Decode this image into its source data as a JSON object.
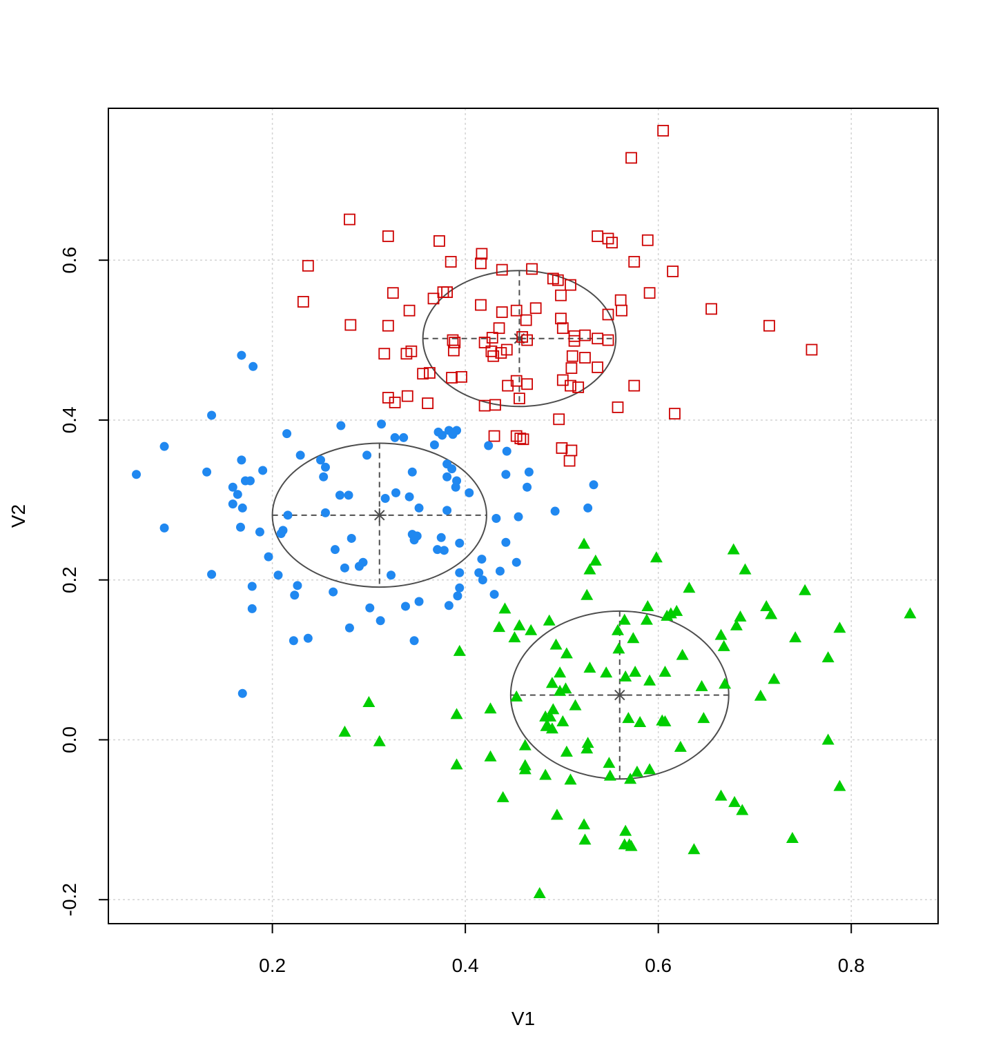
{
  "chart_data": {
    "type": "scatter",
    "title": "",
    "xlabel": "V1",
    "ylabel": "V2",
    "xlim": [
      0.03,
      0.89
    ],
    "ylim": [
      -0.23,
      0.79
    ],
    "xticks": [
      0.2,
      0.4,
      0.6,
      0.8
    ],
    "yticks": [
      -0.2,
      0.0,
      0.2,
      0.4,
      0.6
    ],
    "xtick_labels": [
      "0.2",
      "0.4",
      "0.6",
      "0.8"
    ],
    "ytick_labels": [
      "-0.2",
      "0.0",
      "0.2",
      "0.4",
      "0.6"
    ],
    "grid": true,
    "legend": "none",
    "series": [
      {
        "marker": "open-square",
        "color": "#cd0000",
        "points": [
          [
            0.605,
            0.762
          ],
          [
            0.572,
            0.728
          ],
          [
            0.28,
            0.651
          ],
          [
            0.32,
            0.63
          ],
          [
            0.373,
            0.624
          ],
          [
            0.537,
            0.63
          ],
          [
            0.548,
            0.627
          ],
          [
            0.552,
            0.622
          ],
          [
            0.589,
            0.625
          ],
          [
            0.237,
            0.593
          ],
          [
            0.385,
            0.598
          ],
          [
            0.417,
            0.608
          ],
          [
            0.416,
            0.596
          ],
          [
            0.438,
            0.588
          ],
          [
            0.469,
            0.589
          ],
          [
            0.575,
            0.598
          ],
          [
            0.615,
            0.586
          ],
          [
            0.491,
            0.577
          ],
          [
            0.496,
            0.575
          ],
          [
            0.509,
            0.569
          ],
          [
            0.325,
            0.559
          ],
          [
            0.381,
            0.56
          ],
          [
            0.377,
            0.56
          ],
          [
            0.591,
            0.559
          ],
          [
            0.232,
            0.548
          ],
          [
            0.367,
            0.552
          ],
          [
            0.499,
            0.556
          ],
          [
            0.561,
            0.55
          ],
          [
            0.416,
            0.544
          ],
          [
            0.342,
            0.537
          ],
          [
            0.438,
            0.535
          ],
          [
            0.453,
            0.537
          ],
          [
            0.473,
            0.54
          ],
          [
            0.562,
            0.537
          ],
          [
            0.655,
            0.539
          ],
          [
            0.499,
            0.527
          ],
          [
            0.548,
            0.532
          ],
          [
            0.463,
            0.525
          ],
          [
            0.281,
            0.519
          ],
          [
            0.32,
            0.518
          ],
          [
            0.435,
            0.515
          ],
          [
            0.501,
            0.515
          ],
          [
            0.715,
            0.518
          ],
          [
            0.387,
            0.5
          ],
          [
            0.389,
            0.497
          ],
          [
            0.428,
            0.503
          ],
          [
            0.459,
            0.504
          ],
          [
            0.464,
            0.5
          ],
          [
            0.513,
            0.505
          ],
          [
            0.524,
            0.506
          ],
          [
            0.537,
            0.502
          ],
          [
            0.548,
            0.5
          ],
          [
            0.42,
            0.497
          ],
          [
            0.427,
            0.486
          ],
          [
            0.513,
            0.499
          ],
          [
            0.344,
            0.486
          ],
          [
            0.339,
            0.483
          ],
          [
            0.316,
            0.483
          ],
          [
            0.388,
            0.487
          ],
          [
            0.437,
            0.484
          ],
          [
            0.429,
            0.48
          ],
          [
            0.443,
            0.488
          ],
          [
            0.511,
            0.48
          ],
          [
            0.524,
            0.478
          ],
          [
            0.759,
            0.488
          ],
          [
            0.51,
            0.465
          ],
          [
            0.537,
            0.466
          ],
          [
            0.356,
            0.458
          ],
          [
            0.363,
            0.459
          ],
          [
            0.386,
            0.453
          ],
          [
            0.396,
            0.454
          ],
          [
            0.453,
            0.449
          ],
          [
            0.501,
            0.45
          ],
          [
            0.509,
            0.443
          ],
          [
            0.517,
            0.441
          ],
          [
            0.464,
            0.445
          ],
          [
            0.444,
            0.443
          ],
          [
            0.575,
            0.443
          ],
          [
            0.32,
            0.428
          ],
          [
            0.34,
            0.43
          ],
          [
            0.327,
            0.422
          ],
          [
            0.456,
            0.427
          ],
          [
            0.361,
            0.421
          ],
          [
            0.42,
            0.418
          ],
          [
            0.431,
            0.419
          ],
          [
            0.558,
            0.416
          ],
          [
            0.617,
            0.408
          ],
          [
            0.497,
            0.401
          ],
          [
            0.43,
            0.38
          ],
          [
            0.453,
            0.38
          ],
          [
            0.457,
            0.377
          ],
          [
            0.46,
            0.376
          ],
          [
            0.5,
            0.365
          ],
          [
            0.51,
            0.362
          ],
          [
            0.508,
            0.349
          ]
        ]
      },
      {
        "marker": "filled-circle",
        "color": "#2088f0",
        "points": [
          [
            0.168,
            0.481
          ],
          [
            0.18,
            0.467
          ],
          [
            0.137,
            0.406
          ],
          [
            0.215,
            0.383
          ],
          [
            0.088,
            0.367
          ],
          [
            0.168,
            0.35
          ],
          [
            0.229,
            0.356
          ],
          [
            0.25,
            0.35
          ],
          [
            0.255,
            0.341
          ],
          [
            0.253,
            0.329
          ],
          [
            0.19,
            0.337
          ],
          [
            0.132,
            0.335
          ],
          [
            0.059,
            0.332
          ],
          [
            0.172,
            0.324
          ],
          [
            0.177,
            0.324
          ],
          [
            0.159,
            0.316
          ],
          [
            0.164,
            0.307
          ],
          [
            0.159,
            0.295
          ],
          [
            0.169,
            0.29
          ],
          [
            0.167,
            0.266
          ],
          [
            0.187,
            0.26
          ],
          [
            0.211,
            0.262
          ],
          [
            0.216,
            0.281
          ],
          [
            0.209,
            0.258
          ],
          [
            0.088,
            0.265
          ],
          [
            0.196,
            0.229
          ],
          [
            0.137,
            0.207
          ],
          [
            0.206,
            0.206
          ],
          [
            0.226,
            0.193
          ],
          [
            0.179,
            0.192
          ],
          [
            0.223,
            0.181
          ],
          [
            0.179,
            0.164
          ],
          [
            0.222,
            0.124
          ],
          [
            0.237,
            0.127
          ],
          [
            0.169,
            0.058
          ],
          [
            0.271,
            0.393
          ],
          [
            0.313,
            0.395
          ],
          [
            0.327,
            0.378
          ],
          [
            0.336,
            0.378
          ],
          [
            0.372,
            0.385
          ],
          [
            0.376,
            0.381
          ],
          [
            0.383,
            0.387
          ],
          [
            0.391,
            0.387
          ],
          [
            0.387,
            0.382
          ],
          [
            0.368,
            0.369
          ],
          [
            0.298,
            0.356
          ],
          [
            0.255,
            0.284
          ],
          [
            0.27,
            0.306
          ],
          [
            0.279,
            0.306
          ],
          [
            0.317,
            0.302
          ],
          [
            0.328,
            0.309
          ],
          [
            0.345,
            0.335
          ],
          [
            0.342,
            0.304
          ],
          [
            0.352,
            0.29
          ],
          [
            0.381,
            0.345
          ],
          [
            0.386,
            0.339
          ],
          [
            0.381,
            0.329
          ],
          [
            0.391,
            0.324
          ],
          [
            0.39,
            0.316
          ],
          [
            0.404,
            0.309
          ],
          [
            0.424,
            0.368
          ],
          [
            0.443,
            0.361
          ],
          [
            0.442,
            0.332
          ],
          [
            0.466,
            0.335
          ],
          [
            0.464,
            0.316
          ],
          [
            0.533,
            0.319
          ],
          [
            0.527,
            0.29
          ],
          [
            0.493,
            0.286
          ],
          [
            0.455,
            0.279
          ],
          [
            0.432,
            0.277
          ],
          [
            0.381,
            0.287
          ],
          [
            0.282,
            0.252
          ],
          [
            0.265,
            0.238
          ],
          [
            0.29,
            0.217
          ],
          [
            0.294,
            0.222
          ],
          [
            0.275,
            0.215
          ],
          [
            0.323,
            0.206
          ],
          [
            0.345,
            0.257
          ],
          [
            0.347,
            0.25
          ],
          [
            0.35,
            0.255
          ],
          [
            0.375,
            0.253
          ],
          [
            0.371,
            0.238
          ],
          [
            0.378,
            0.237
          ],
          [
            0.394,
            0.246
          ],
          [
            0.394,
            0.209
          ],
          [
            0.414,
            0.209
          ],
          [
            0.417,
            0.226
          ],
          [
            0.418,
            0.2
          ],
          [
            0.436,
            0.211
          ],
          [
            0.442,
            0.247
          ],
          [
            0.453,
            0.222
          ],
          [
            0.394,
            0.19
          ],
          [
            0.392,
            0.18
          ],
          [
            0.383,
            0.168
          ],
          [
            0.263,
            0.185
          ],
          [
            0.352,
            0.173
          ],
          [
            0.338,
            0.167
          ],
          [
            0.301,
            0.165
          ],
          [
            0.312,
            0.149
          ],
          [
            0.28,
            0.14
          ],
          [
            0.347,
            0.124
          ],
          [
            0.43,
            0.182
          ]
        ]
      },
      {
        "marker": "filled-triangle",
        "color": "#00cd00",
        "points": [
          [
            0.523,
            0.245
          ],
          [
            0.535,
            0.224
          ],
          [
            0.529,
            0.213
          ],
          [
            0.598,
            0.228
          ],
          [
            0.678,
            0.238
          ],
          [
            0.69,
            0.213
          ],
          [
            0.632,
            0.19
          ],
          [
            0.526,
            0.181
          ],
          [
            0.752,
            0.187
          ],
          [
            0.861,
            0.158
          ],
          [
            0.712,
            0.167
          ],
          [
            0.717,
            0.157
          ],
          [
            0.685,
            0.154
          ],
          [
            0.681,
            0.143
          ],
          [
            0.665,
            0.131
          ],
          [
            0.668,
            0.117
          ],
          [
            0.742,
            0.128
          ],
          [
            0.788,
            0.14
          ],
          [
            0.776,
            0.103
          ],
          [
            0.435,
            0.141
          ],
          [
            0.456,
            0.143
          ],
          [
            0.441,
            0.164
          ],
          [
            0.451,
            0.128
          ],
          [
            0.468,
            0.137
          ],
          [
            0.487,
            0.149
          ],
          [
            0.558,
            0.137
          ],
          [
            0.565,
            0.15
          ],
          [
            0.574,
            0.127
          ],
          [
            0.589,
            0.167
          ],
          [
            0.588,
            0.15
          ],
          [
            0.609,
            0.155
          ],
          [
            0.613,
            0.158
          ],
          [
            0.619,
            0.161
          ],
          [
            0.625,
            0.106
          ],
          [
            0.394,
            0.111
          ],
          [
            0.494,
            0.119
          ],
          [
            0.505,
            0.108
          ],
          [
            0.559,
            0.114
          ],
          [
            0.529,
            0.09
          ],
          [
            0.546,
            0.084
          ],
          [
            0.576,
            0.085
          ],
          [
            0.566,
            0.079
          ],
          [
            0.607,
            0.085
          ],
          [
            0.591,
            0.074
          ],
          [
            0.49,
            0.071
          ],
          [
            0.498,
            0.084
          ],
          [
            0.498,
            0.061
          ],
          [
            0.504,
            0.064
          ],
          [
            0.491,
            0.038
          ],
          [
            0.514,
            0.043
          ],
          [
            0.453,
            0.054
          ],
          [
            0.426,
            0.039
          ],
          [
            0.3,
            0.047
          ],
          [
            0.391,
            0.032
          ],
          [
            0.483,
            0.029
          ],
          [
            0.484,
            0.017
          ],
          [
            0.488,
            0.029
          ],
          [
            0.485,
            0.018
          ],
          [
            0.49,
            0.014
          ],
          [
            0.501,
            0.023
          ],
          [
            0.569,
            0.027
          ],
          [
            0.581,
            0.022
          ],
          [
            0.604,
            0.024
          ],
          [
            0.607,
            0.023
          ],
          [
            0.645,
            0.067
          ],
          [
            0.669,
            0.07
          ],
          [
            0.647,
            0.027
          ],
          [
            0.706,
            0.055
          ],
          [
            0.72,
            0.076
          ],
          [
            0.275,
            0.01
          ],
          [
            0.311,
            -0.002
          ],
          [
            0.391,
            -0.031
          ],
          [
            0.426,
            -0.021
          ],
          [
            0.462,
            -0.007
          ],
          [
            0.462,
            -0.032
          ],
          [
            0.462,
            -0.037
          ],
          [
            0.505,
            -0.015
          ],
          [
            0.526,
            -0.011
          ],
          [
            0.527,
            -0.004
          ],
          [
            0.549,
            -0.029
          ],
          [
            0.55,
            -0.045
          ],
          [
            0.571,
            -0.049
          ],
          [
            0.578,
            -0.04
          ],
          [
            0.591,
            -0.037
          ],
          [
            0.623,
            -0.009
          ],
          [
            0.509,
            -0.05
          ],
          [
            0.483,
            -0.044
          ],
          [
            0.439,
            -0.072
          ],
          [
            0.495,
            -0.094
          ],
          [
            0.523,
            -0.106
          ],
          [
            0.524,
            -0.125
          ],
          [
            0.665,
            -0.07
          ],
          [
            0.679,
            -0.078
          ],
          [
            0.687,
            -0.088
          ],
          [
            0.776,
            0.0
          ],
          [
            0.788,
            -0.058
          ],
          [
            0.566,
            -0.114
          ],
          [
            0.565,
            -0.131
          ],
          [
            0.57,
            -0.131
          ],
          [
            0.572,
            -0.133
          ],
          [
            0.637,
            -0.137
          ],
          [
            0.739,
            -0.123
          ],
          [
            0.477,
            -0.192
          ]
        ]
      }
    ],
    "ellipses": [
      {
        "center": [
          0.456,
          0.502
        ],
        "rx": 0.1,
        "ry": 0.085
      },
      {
        "center": [
          0.311,
          0.281
        ],
        "rx": 0.111,
        "ry": 0.09
      },
      {
        "center": [
          0.56,
          0.056
        ],
        "rx": 0.113,
        "ry": 0.105
      }
    ]
  }
}
